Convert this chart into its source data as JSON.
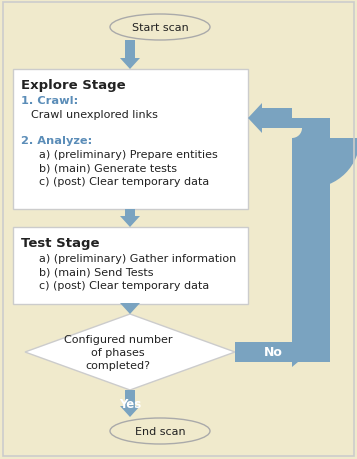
{
  "bg_color": "#f0eacc",
  "box_bg": "#ffffff",
  "arrow_color": "#7aa3c0",
  "border_color": "#cccccc",
  "blue_text": "#5b8db8",
  "black_text": "#222222",
  "white_text": "#ffffff",
  "figsize": [
    3.57,
    4.6
  ],
  "dpi": 100,
  "start_label": "Start scan",
  "end_label": "End scan",
  "explore_title": "Explore Stage",
  "test_title": "Test Stage",
  "diamond_text": "Configured number\nof phases\ncompleted?",
  "yes_label": "Yes",
  "no_label": "No",
  "explore_lines": [
    {
      "text": "1. Crawl:",
      "color": "#5b8db8",
      "bold": true,
      "indent": 0
    },
    {
      "text": "Crawl unexplored links",
      "color": "#222222",
      "bold": false,
      "indent": 1
    },
    {
      "text": " ",
      "color": "#222222",
      "bold": false,
      "indent": 0
    },
    {
      "text": "2. Analyze:",
      "color": "#5b8db8",
      "bold": true,
      "indent": 0
    },
    {
      "text": "a) (preliminary) Prepare entities",
      "color": "#222222",
      "bold": false,
      "indent": 2
    },
    {
      "text": "b) (main) Generate tests",
      "color": "#222222",
      "bold": false,
      "indent": 2
    },
    {
      "text": "c) (post) Clear temporary data",
      "color": "#222222",
      "bold": false,
      "indent": 2
    }
  ],
  "test_lines": [
    {
      "text": "a) (preliminary) Gather information",
      "color": "#222222",
      "bold": false,
      "indent": 2
    },
    {
      "text": "b) (main) Send Tests",
      "color": "#222222",
      "bold": false,
      "indent": 2
    },
    {
      "text": "c) (post) Clear temporary data",
      "color": "#222222",
      "bold": false,
      "indent": 2
    }
  ]
}
